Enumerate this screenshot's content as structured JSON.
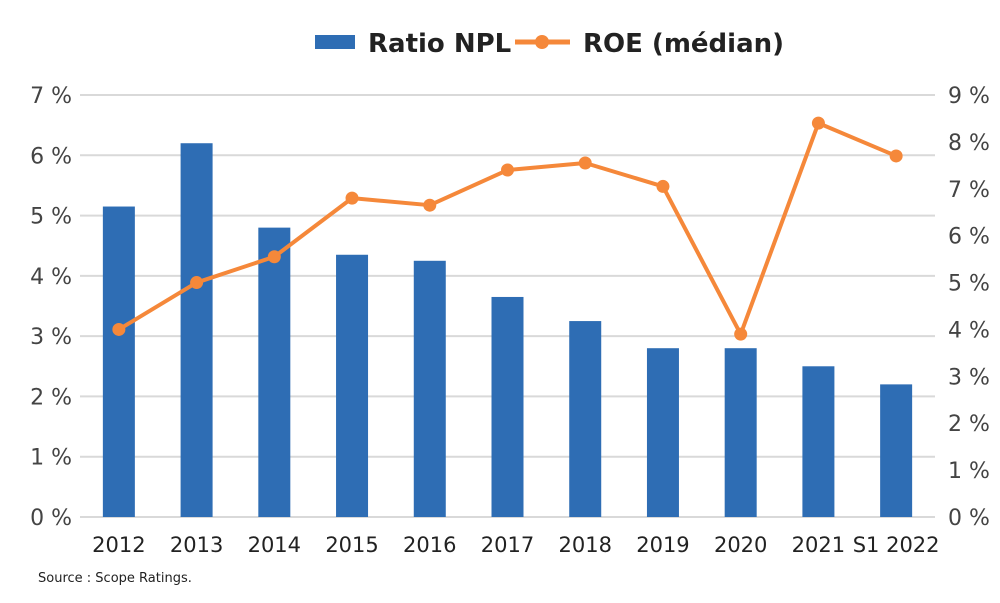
{
  "chart_data": {
    "type": "bar+line",
    "title": "",
    "categories": [
      "2012",
      "2013",
      "2014",
      "2015",
      "2016",
      "2017",
      "2018",
      "2019",
      "2020",
      "2021",
      "S1 2022"
    ],
    "series": [
      {
        "name": "Ratio NPL",
        "type": "bar",
        "axis": "left",
        "color": "#2E6DB4",
        "values": [
          5.15,
          6.2,
          4.8,
          4.35,
          4.25,
          3.65,
          3.25,
          2.8,
          2.8,
          2.5,
          2.2
        ]
      },
      {
        "name": "ROE (médian)",
        "type": "line",
        "axis": "right",
        "color": "#F5883A",
        "values": [
          4.0,
          5.0,
          5.55,
          6.8,
          6.65,
          7.4,
          7.55,
          7.05,
          3.9,
          8.4,
          7.7
        ]
      }
    ],
    "y_left": {
      "range": [
        0,
        7
      ],
      "ticks": [
        "0 %",
        "1 %",
        "2 %",
        "3 %",
        "4 %",
        "5 %",
        "6 %",
        "7 %"
      ]
    },
    "y_right": {
      "range": [
        0,
        9
      ],
      "ticks": [
        "0 %",
        "1 %",
        "2 %",
        "3 %",
        "4 %",
        "5 %",
        "6 %",
        "7 %",
        "8 %",
        "9 %"
      ]
    },
    "grid": true,
    "legend": "top-center",
    "source": "Source : Scope Ratings."
  }
}
